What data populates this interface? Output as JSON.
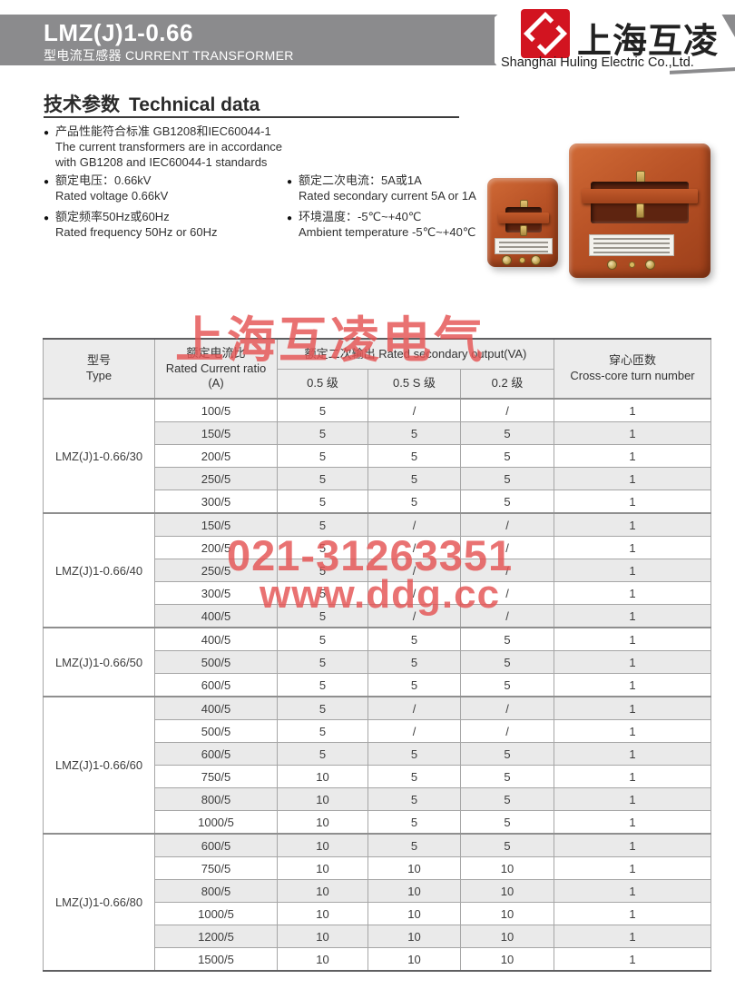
{
  "header": {
    "model": "LMZ(J)1-0.66",
    "subtitle": "型电流互感器 CURRENT TRANSFORMER",
    "brand_cn": "上海互凌",
    "brand_en": "Shanghai Huling Electric Co.,Ltd."
  },
  "section": {
    "title_cn": "技术参数",
    "title_en": "Technical data",
    "bullets": [
      {
        "cn": "产品性能符合标准 GB1208和IEC60044-1",
        "en": [
          "The current transformers are in accordance",
          "with GB1208 and IEC60044-1 standards"
        ]
      },
      {
        "cn": "额定电压：0.66kV",
        "en": [
          "Rated voltage 0.66kV"
        ]
      },
      {
        "cn": "额定频率50Hz或60Hz",
        "en": [
          "Rated frequency 50Hz or 60Hz"
        ]
      },
      {
        "cn": "额定二次电流：5A或1A",
        "en": [
          "Rated secondary current 5A or 1A"
        ]
      },
      {
        "cn": "环境温度：-5℃~+40℃",
        "en": [
          "Ambient temperature -5℃~+40℃"
        ]
      }
    ]
  },
  "watermarks": {
    "line1": "上海互凌电气",
    "line2": "021-31263351",
    "line3": "www.ddg.cc"
  },
  "colors": {
    "header_bar": "#8b8b8d",
    "brand_red": "#d21420",
    "watermark_red": "#e45353",
    "table_shade": "#eaeaea",
    "product_orange": "#b85226"
  },
  "table": {
    "headers": {
      "type_cn": "型号",
      "type_en": "Type",
      "ratio_cn": "额定电流比",
      "ratio_en": "Rated Current ratio",
      "ratio_unit": "(A)",
      "output_title": "额定二次输出 Rated secondary output(VA)",
      "output_cols": [
        "0.5 级",
        "0.5 S 级",
        "0.2 级"
      ],
      "turns_cn": "穿心匝数",
      "turns_en": "Cross-core turn number"
    },
    "groups": [
      {
        "type": "LMZ(J)1-0.66/30",
        "rows": [
          [
            "100/5",
            "5",
            "/",
            "/",
            "1"
          ],
          [
            "150/5",
            "5",
            "5",
            "5",
            "1"
          ],
          [
            "200/5",
            "5",
            "5",
            "5",
            "1"
          ],
          [
            "250/5",
            "5",
            "5",
            "5",
            "1"
          ],
          [
            "300/5",
            "5",
            "5",
            "5",
            "1"
          ]
        ]
      },
      {
        "type": "LMZ(J)1-0.66/40",
        "rows": [
          [
            "150/5",
            "5",
            "/",
            "/",
            "1"
          ],
          [
            "200/5",
            "5",
            "/",
            "/",
            "1"
          ],
          [
            "250/5",
            "5",
            "/",
            "/",
            "1"
          ],
          [
            "300/5",
            "5",
            "/",
            "/",
            "1"
          ],
          [
            "400/5",
            "5",
            "/",
            "/",
            "1"
          ]
        ]
      },
      {
        "type": "LMZ(J)1-0.66/50",
        "rows": [
          [
            "400/5",
            "5",
            "5",
            "5",
            "1"
          ],
          [
            "500/5",
            "5",
            "5",
            "5",
            "1"
          ],
          [
            "600/5",
            "5",
            "5",
            "5",
            "1"
          ]
        ]
      },
      {
        "type": "LMZ(J)1-0.66/60",
        "rows": [
          [
            "400/5",
            "5",
            "/",
            "/",
            "1"
          ],
          [
            "500/5",
            "5",
            "/",
            "/",
            "1"
          ],
          [
            "600/5",
            "5",
            "5",
            "5",
            "1"
          ],
          [
            "750/5",
            "10",
            "5",
            "5",
            "1"
          ],
          [
            "800/5",
            "10",
            "5",
            "5",
            "1"
          ],
          [
            "1000/5",
            "10",
            "5",
            "5",
            "1"
          ]
        ]
      },
      {
        "type": "LMZ(J)1-0.66/80",
        "rows": [
          [
            "600/5",
            "10",
            "5",
            "5",
            "1"
          ],
          [
            "750/5",
            "10",
            "10",
            "10",
            "1"
          ],
          [
            "800/5",
            "10",
            "10",
            "10",
            "1"
          ],
          [
            "1000/5",
            "10",
            "10",
            "10",
            "1"
          ],
          [
            "1200/5",
            "10",
            "10",
            "10",
            "1"
          ],
          [
            "1500/5",
            "10",
            "10",
            "10",
            "1"
          ]
        ]
      }
    ]
  }
}
